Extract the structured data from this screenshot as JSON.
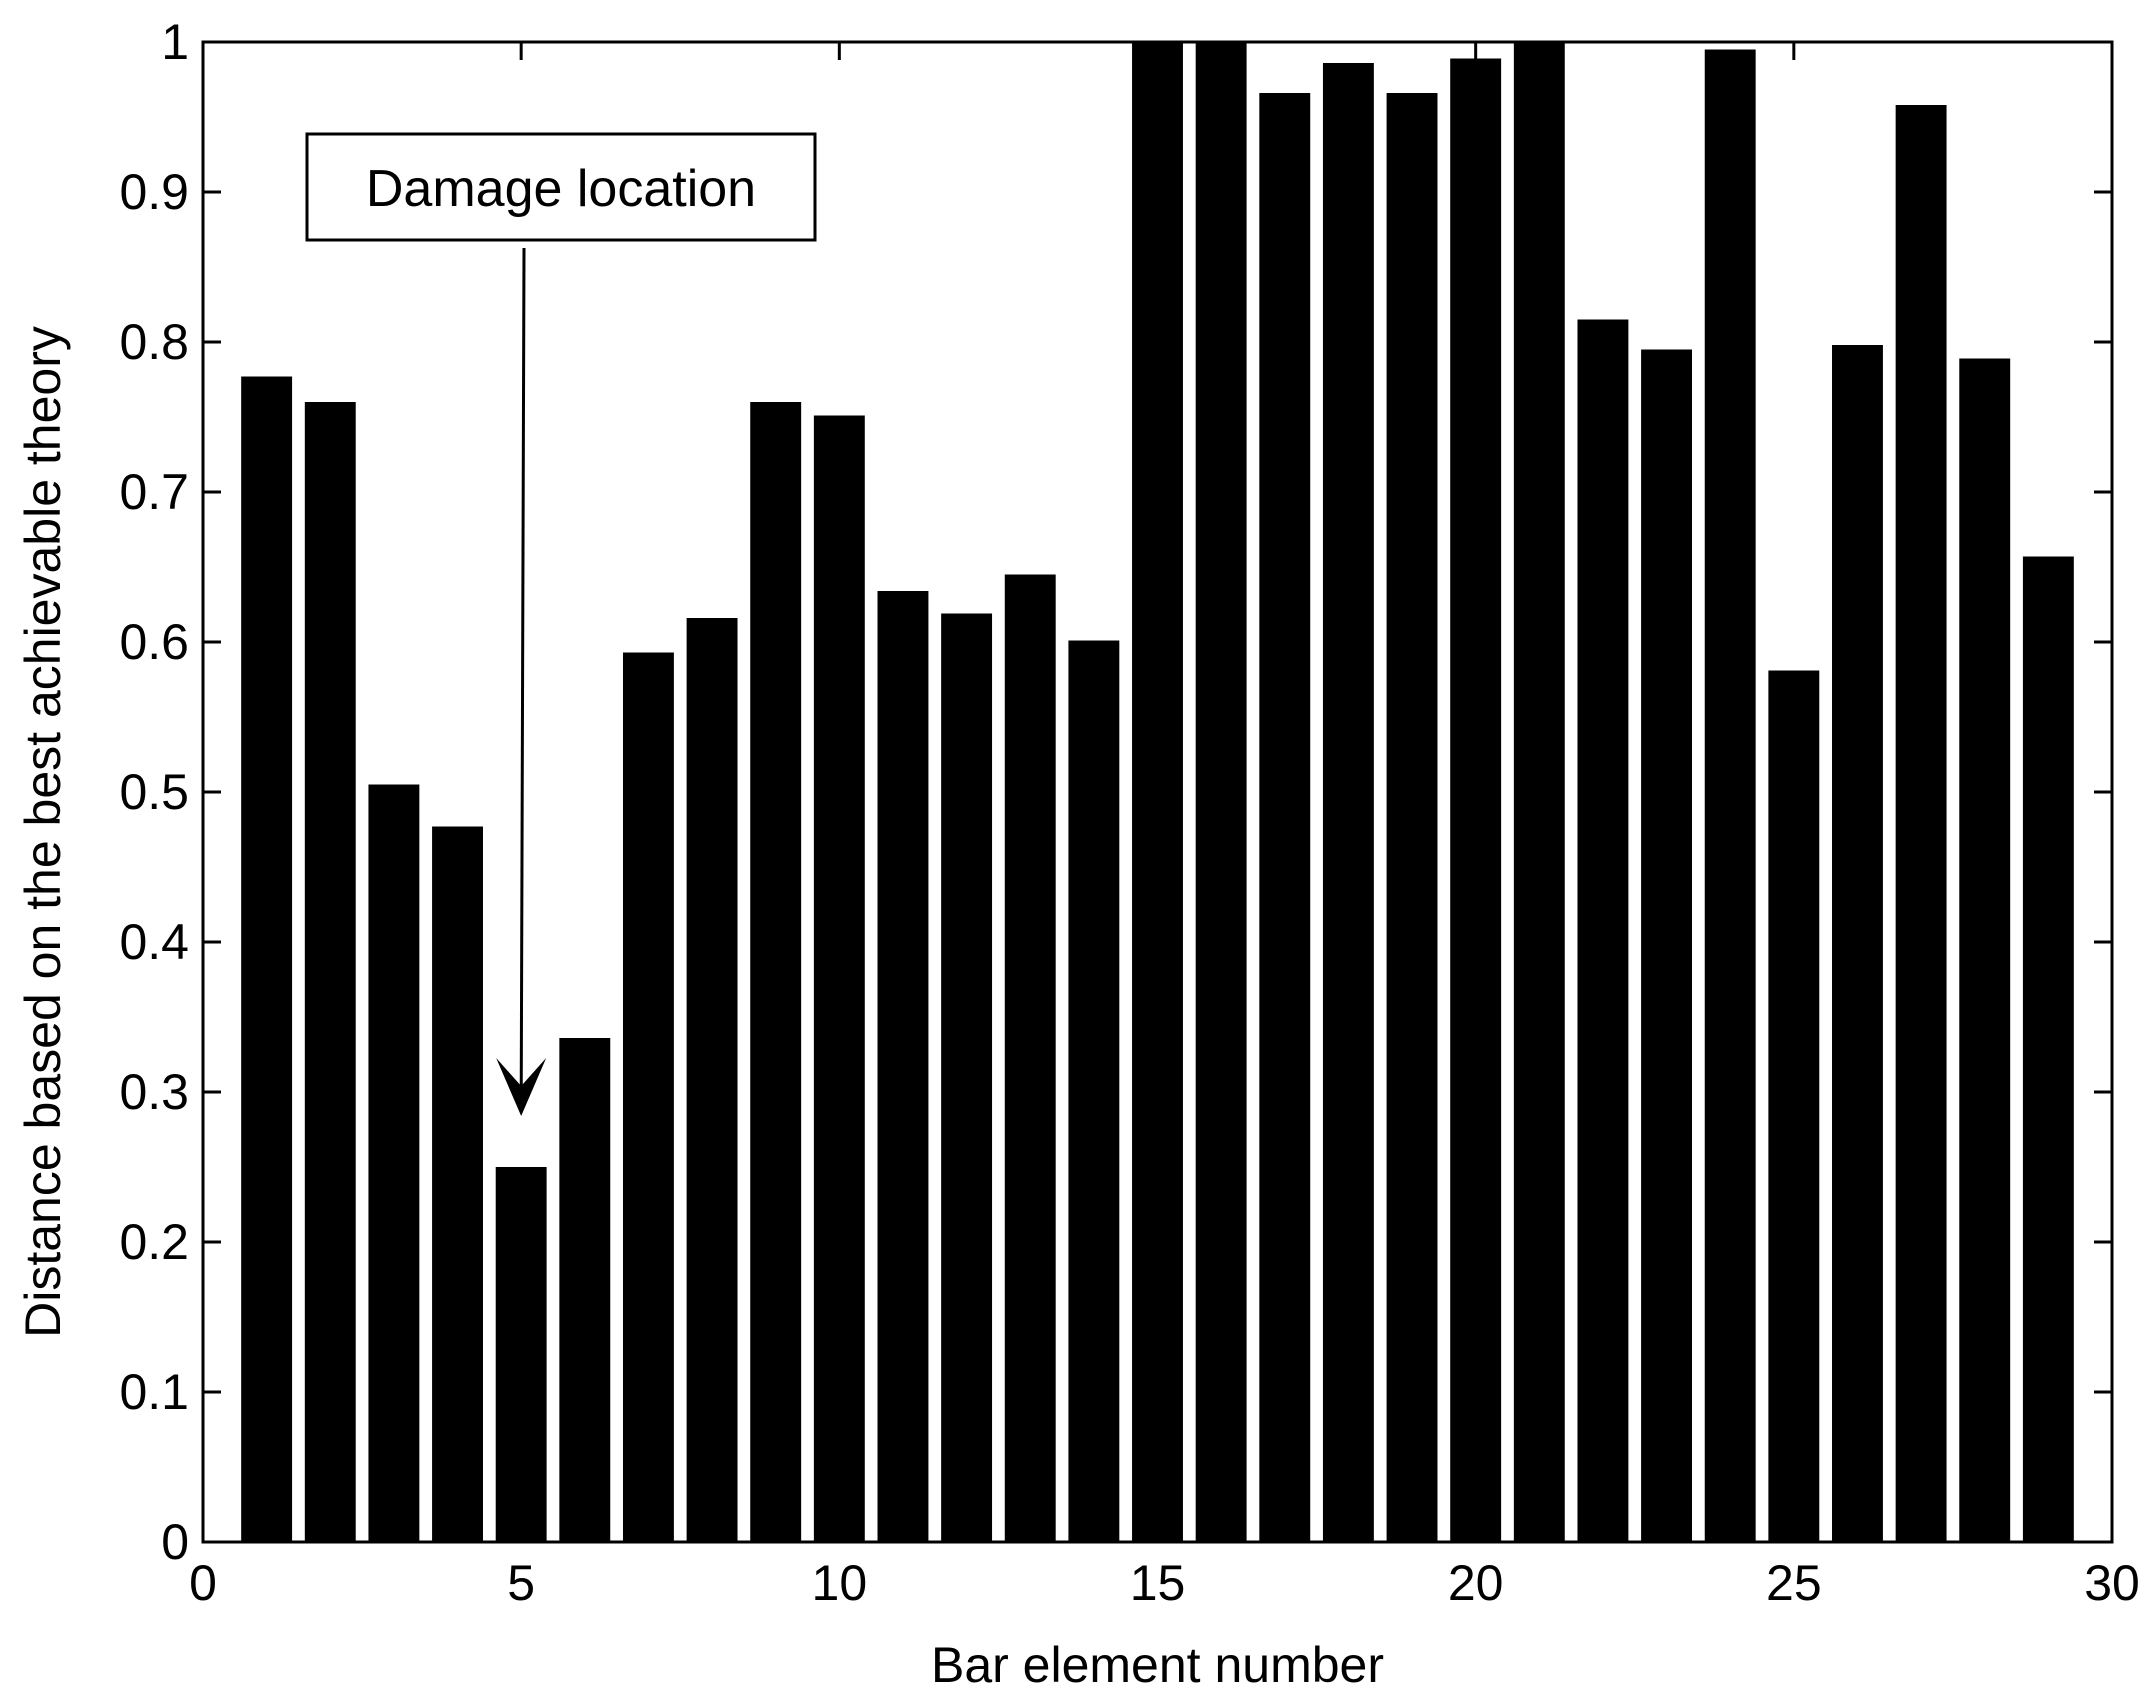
{
  "chart_data": {
    "type": "bar",
    "title": "",
    "xlabel": "Bar element number",
    "ylabel": "Distance based on the best achievable theory",
    "x": [
      1,
      2,
      3,
      4,
      5,
      6,
      7,
      8,
      9,
      10,
      11,
      12,
      13,
      14,
      15,
      16,
      17,
      18,
      19,
      20,
      21,
      22,
      23,
      24,
      25,
      26,
      27,
      28,
      29
    ],
    "values": [
      0.777,
      0.76,
      0.505,
      0.477,
      0.25,
      0.336,
      0.593,
      0.616,
      0.76,
      0.751,
      0.634,
      0.619,
      0.645,
      0.601,
      1.0,
      1.0,
      0.966,
      0.986,
      0.966,
      0.989,
      1.0,
      0.815,
      0.795,
      0.995,
      0.581,
      0.798,
      0.958,
      0.789,
      0.657
    ],
    "xlim": [
      0,
      30
    ],
    "ylim": [
      0,
      1
    ],
    "xticks": [
      "0",
      "5",
      "10",
      "15",
      "20",
      "25",
      "30"
    ],
    "yticks": [
      "0",
      "0.1",
      "0.2",
      "0.3",
      "0.4",
      "0.5",
      "0.6",
      "0.7",
      "0.8",
      "0.9",
      "1"
    ],
    "bar_color": "#000000",
    "grid": false,
    "annotation": {
      "text": "Damage location",
      "target_x": 5,
      "target_y": 0.28
    }
  }
}
